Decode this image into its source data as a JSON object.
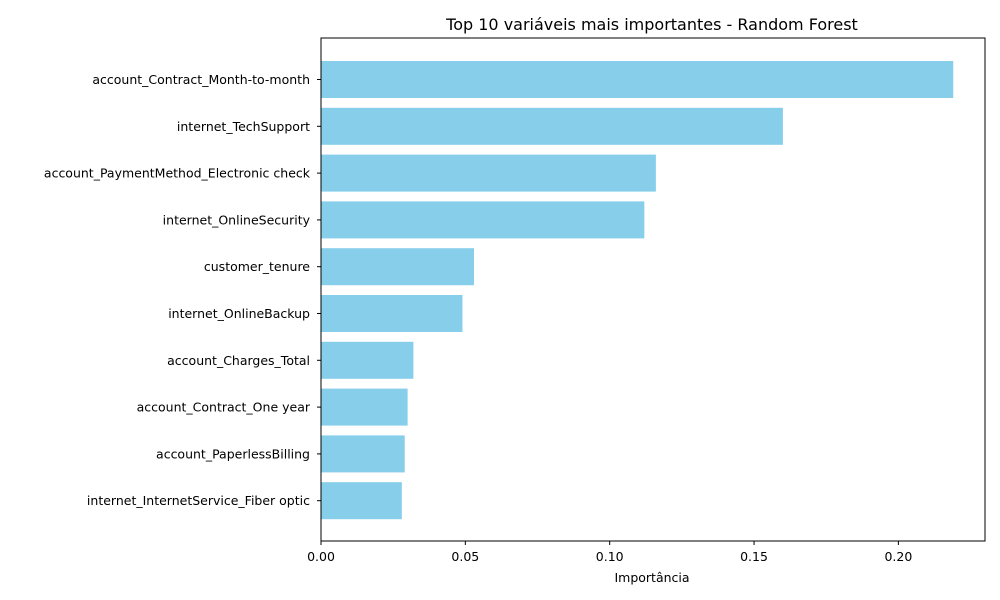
{
  "chart_data": {
    "type": "bar",
    "orientation": "horizontal",
    "title": "Top 10 variáveis mais importantes - Random Forest",
    "xlabel": "Importância",
    "ylabel": "",
    "xlim": [
      0,
      0.23
    ],
    "xticks": [
      "0.00",
      "0.05",
      "0.10",
      "0.15",
      "0.20"
    ],
    "xtick_values": [
      0,
      0.05,
      0.1,
      0.15,
      0.2
    ],
    "grid": false,
    "bar_color": "#87CEEB",
    "categories": [
      "account_Contract_Month-to-month",
      "internet_TechSupport",
      "account_PaymentMethod_Electronic check",
      "internet_OnlineSecurity",
      "customer_tenure",
      "internet_OnlineBackup",
      "account_Charges_Total",
      "account_Contract_One year",
      "account_PaperlessBilling",
      "internet_InternetService_Fiber optic"
    ],
    "values": [
      0.219,
      0.16,
      0.116,
      0.112,
      0.053,
      0.049,
      0.032,
      0.03,
      0.029,
      0.028
    ]
  }
}
